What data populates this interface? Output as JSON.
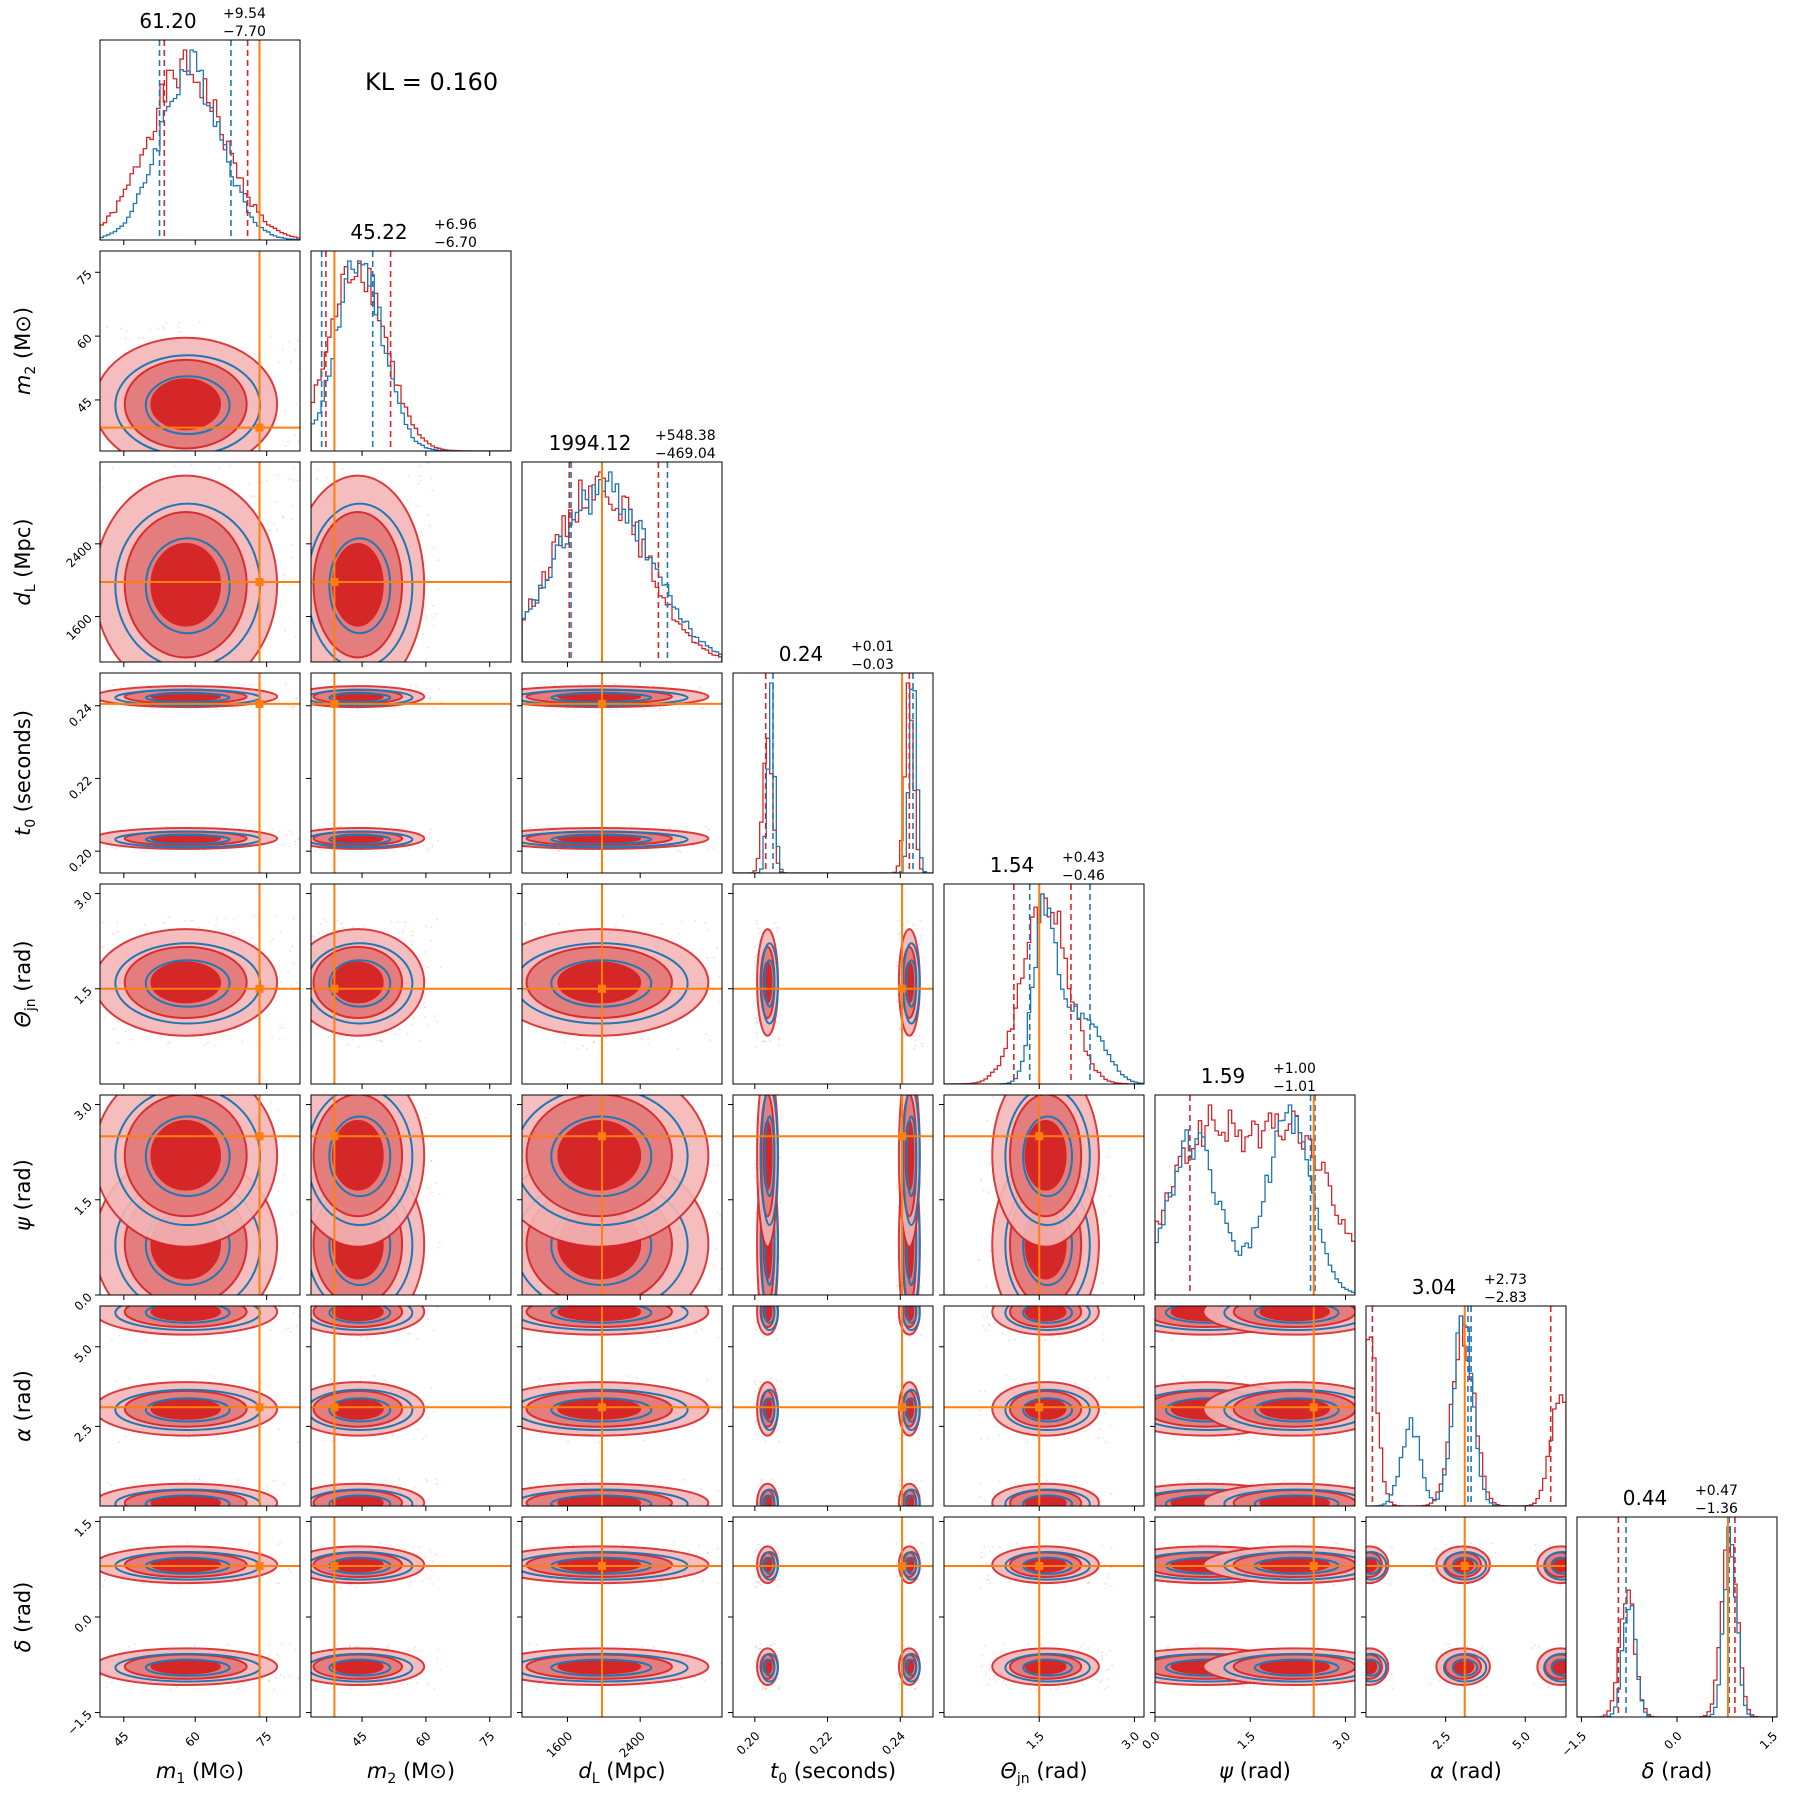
{
  "annotation": "KL = 0.160",
  "colors": {
    "red": "#d62728",
    "blue": "#1f77b4",
    "orange": "#ff7f0e",
    "axis": "#000000"
  },
  "chart_data": {
    "type": "corner",
    "parameters": [
      {
        "key": "m1",
        "label": "m",
        "sub": "1",
        "unit": "(M⊙)",
        "range": [
          40,
          82
        ],
        "ticks": [
          45,
          60,
          75
        ],
        "tick_labels": [
          "45",
          "60",
          "75"
        ],
        "truth": 73.5,
        "title": {
          "median": "61.20",
          "plus": "+9.54",
          "minus": "−7.70"
        },
        "q_red": [
          53.5,
          71.0
        ],
        "q_blue": [
          52.5,
          67.5
        ],
        "hist_red": {
          "means": [
            58
          ],
          "sds": [
            8
          ],
          "weights": [
            1
          ]
        },
        "hist_blue": {
          "means": [
            59
          ],
          "sds": [
            6.5
          ],
          "weights": [
            1
          ]
        }
      },
      {
        "key": "m2",
        "label": "m",
        "sub": "2",
        "unit": "(M⊙)",
        "range": [
          33,
          80
        ],
        "ticks": [
          45,
          60,
          75
        ],
        "tick_labels": [
          "45",
          "60",
          "75"
        ],
        "truth": 38.5,
        "title": {
          "median": "45.22",
          "plus": "+6.96",
          "minus": "−6.70"
        },
        "q_red": [
          36.5,
          51.7
        ],
        "q_blue": [
          35.5,
          47.5
        ],
        "hist_red": {
          "means": [
            44
          ],
          "sds": [
            6.5
          ],
          "weights": [
            1
          ]
        },
        "hist_blue": {
          "means": [
            44.5
          ],
          "sds": [
            5.5
          ],
          "weights": [
            1
          ]
        }
      },
      {
        "key": "dL",
        "label": "d",
        "sub": "L",
        "unit": "(Mpc)",
        "range": [
          1100,
          3300
        ],
        "ticks": [
          1600,
          2400
        ],
        "tick_labels": [
          "1600",
          "2400"
        ],
        "truth": 1980,
        "title": {
          "median": "1994.12",
          "plus": "+548.38",
          "minus": "−469.04"
        },
        "q_red": [
          1620,
          2600
        ],
        "q_blue": [
          1640,
          2700
        ],
        "hist_red": {
          "means": [
            1950
          ],
          "sds": [
            500
          ],
          "weights": [
            1
          ]
        },
        "hist_blue": {
          "means": [
            2000
          ],
          "sds": [
            520
          ],
          "weights": [
            1
          ]
        }
      },
      {
        "key": "t0",
        "label": "t",
        "sub": "0",
        "unit": "(seconds)",
        "range": [
          0.194,
          0.249
        ],
        "ticks": [
          0.2,
          0.22,
          0.24
        ],
        "tick_labels": [
          "0.20",
          "0.22",
          "0.24"
        ],
        "truth": 0.2405,
        "title": {
          "median": "0.24",
          "plus": "+0.01",
          "minus": "−0.03"
        },
        "q_red": [
          0.203,
          0.2425
        ],
        "q_blue": [
          0.205,
          0.2435
        ],
        "hist_red": {
          "means": [
            0.2035,
            0.2425
          ],
          "sds": [
            0.0012,
            0.0012
          ],
          "weights": [
            0.45,
            0.55
          ]
        },
        "hist_blue": {
          "means": [
            0.2045,
            0.2435
          ],
          "sds": [
            0.001,
            0.001
          ],
          "weights": [
            0.45,
            0.55
          ]
        }
      },
      {
        "key": "thetajn",
        "label": "Θ",
        "sub": "jn",
        "unit": "(rad)",
        "range": [
          0.0,
          3.15
        ],
        "ticks": [
          1.5,
          3.0
        ],
        "tick_labels": [
          "1.5",
          "3.0"
        ],
        "truth": 1.5,
        "title": {
          "median": "1.54",
          "plus": "+0.43",
          "minus": "−0.46"
        },
        "q_red": [
          1.1,
          2.0
        ],
        "q_blue": [
          1.35,
          2.3
        ],
        "hist_red": {
          "means": [
            1.6
          ],
          "sds": [
            0.35
          ],
          "weights": [
            1
          ]
        },
        "hist_blue": {
          "means": [
            1.6,
            2.2
          ],
          "sds": [
            0.18,
            0.3
          ],
          "weights": [
            0.6,
            0.4
          ]
        }
      },
      {
        "key": "psi",
        "label": "ψ",
        "sub": "",
        "unit": "(rad)",
        "range": [
          0.0,
          3.15
        ],
        "ticks": [
          0.0,
          1.5,
          3.0
        ],
        "tick_labels": [
          "0.0",
          "1.5",
          "3.0"
        ],
        "truth": 2.5,
        "title": {
          "median": "1.59",
          "plus": "+1.00",
          "minus": "−1.01"
        },
        "q_red": [
          0.55,
          2.5
        ],
        "q_blue": [
          2.45,
          2.52
        ],
        "hist_red": {
          "means": [
            0.8,
            2.2
          ],
          "sds": [
            0.6,
            0.6
          ],
          "weights": [
            0.5,
            0.5
          ]
        },
        "hist_blue": {
          "means": [
            0.6,
            2.1
          ],
          "sds": [
            0.4,
            0.35
          ],
          "weights": [
            0.5,
            0.5
          ]
        }
      },
      {
        "key": "alpha",
        "label": "α",
        "sub": "",
        "unit": "(rad)",
        "range": [
          0.0,
          6.28
        ],
        "ticks": [
          2.5,
          5.0
        ],
        "tick_labels": [
          "2.5",
          "5.0"
        ],
        "truth": 3.1,
        "title": {
          "median": "3.04",
          "plus": "+2.73",
          "minus": "−2.83"
        },
        "q_red": [
          0.2,
          5.8
        ],
        "q_blue": [
          3.2,
          3.3
        ],
        "hist_red": {
          "means": [
            0.1,
            3.05,
            6.1
          ],
          "sds": [
            0.25,
            0.35,
            0.3
          ],
          "weights": [
            0.3,
            0.45,
            0.25
          ]
        },
        "hist_blue": {
          "means": [
            1.4,
            3.05
          ],
          "sds": [
            0.3,
            0.3
          ],
          "weights": [
            0.3,
            0.7
          ]
        }
      },
      {
        "key": "delta",
        "label": "δ",
        "sub": "",
        "unit": "(rad)",
        "range": [
          -1.57,
          1.57
        ],
        "ticks": [
          -1.5,
          0.0,
          1.5
        ],
        "tick_labels": [
          "−1.5",
          "0.0",
          "1.5"
        ],
        "truth": 0.8,
        "title": {
          "median": "0.44",
          "plus": "+0.47",
          "minus": "−1.36"
        },
        "q_red": [
          -0.92,
          0.91
        ],
        "q_blue": [
          -0.8,
          0.82
        ],
        "hist_red": {
          "means": [
            -0.78,
            0.82
          ],
          "sds": [
            0.12,
            0.12
          ],
          "weights": [
            0.4,
            0.6
          ]
        },
        "hist_blue": {
          "means": [
            -0.75,
            0.84
          ],
          "sds": [
            0.1,
            0.1
          ],
          "weights": [
            0.4,
            0.6
          ]
        }
      }
    ],
    "series": [
      {
        "name": "",
        "color": "#d62728",
        "style": "filled contours + histogram"
      },
      {
        "name": "",
        "color": "#1f77b4",
        "style": "contour lines + histogram"
      }
    ],
    "truth_color": "#ff7f0e"
  }
}
